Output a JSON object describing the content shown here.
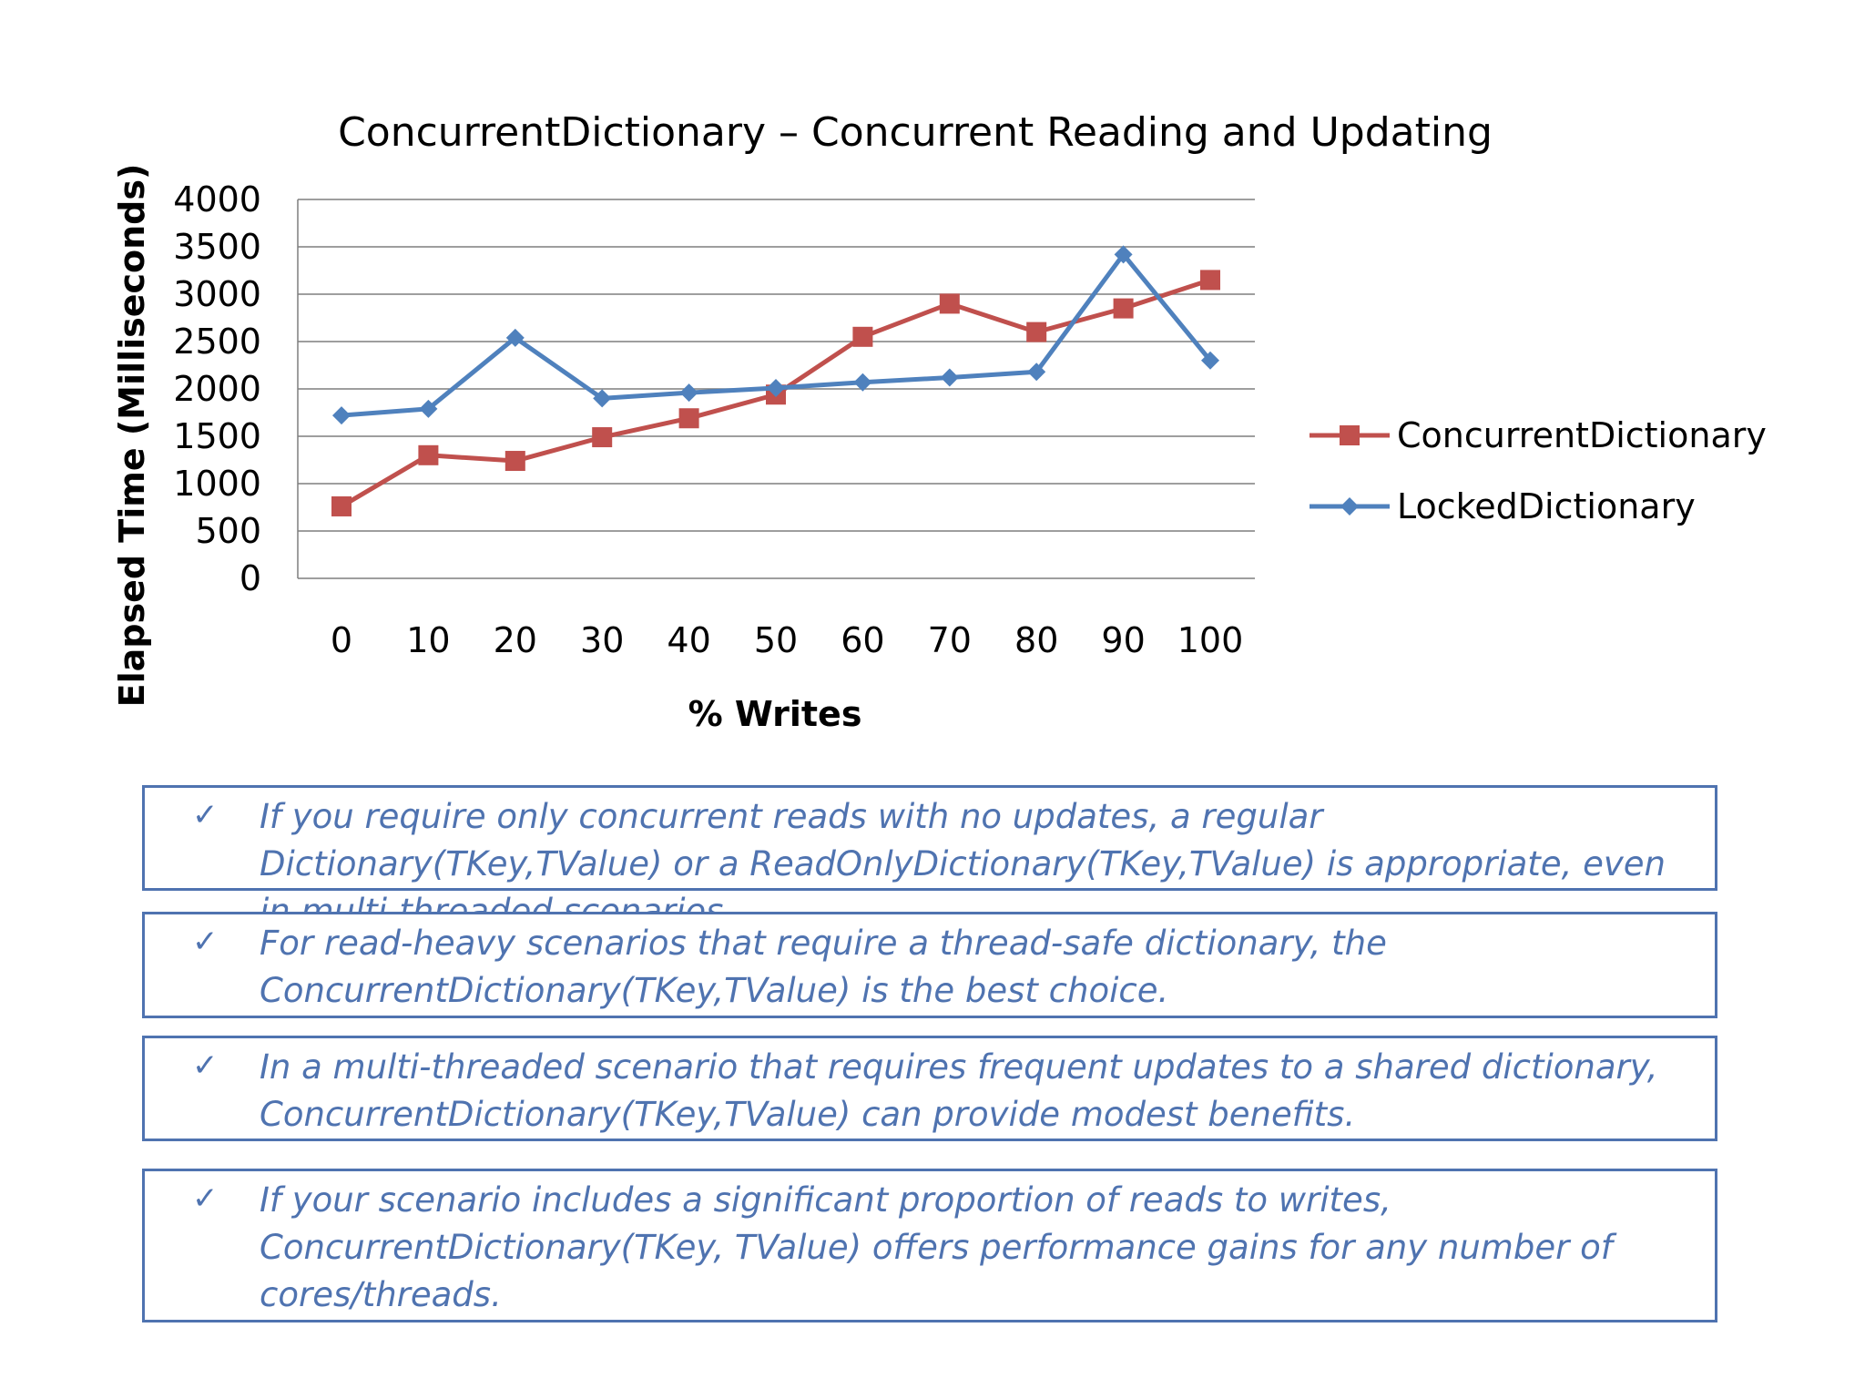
{
  "chart_data": {
    "type": "line",
    "title": "ConcurrentDictionary – Concurrent Reading and Updating",
    "xlabel": "% Writes",
    "ylabel": "Elapsed Time (Milliseconds)",
    "categories": [
      "0",
      "10",
      "20",
      "30",
      "40",
      "50",
      "60",
      "70",
      "80",
      "90",
      "100"
    ],
    "ylim": [
      0,
      4000
    ],
    "yticks": [
      "0",
      "500",
      "1000",
      "1500",
      "2000",
      "2500",
      "3000",
      "3500",
      "4000"
    ],
    "grid": true,
    "legend_position": "right",
    "series": [
      {
        "name": "ConcurrentDictionary",
        "color": "#c0504d",
        "marker": "square",
        "values": [
          760,
          1300,
          1240,
          1490,
          1690,
          1940,
          2550,
          2900,
          2600,
          2850,
          3150
        ]
      },
      {
        "name": "LockedDictionary",
        "color": "#4f81bd",
        "marker": "diamond",
        "values": [
          1720,
          1790,
          2540,
          1900,
          1960,
          2010,
          2070,
          2120,
          2180,
          3420,
          2300
        ]
      }
    ]
  },
  "notes": [
    {
      "check": "✓",
      "text": "If you require only concurrent reads with no updates, a regular Dictionary(TKey,TValue) or a ReadOnlyDictionary(TKey,TValue) is appropriate, even in multi-threaded scenarios."
    },
    {
      "check": "✓",
      "text": "For read-heavy scenarios that require a thread-safe dictionary, the ConcurrentDictionary(TKey,TValue) is the best choice."
    },
    {
      "check": "✓",
      "text": "In a multi-threaded scenario that requires frequent updates to a shared dictionary, ConcurrentDictionary(TKey,TValue) can provide modest benefits."
    },
    {
      "check": "✓",
      "text": "If your scenario includes a significant proportion of reads to writes, ConcurrentDictionary(TKey, TValue) offers performance gains for any number of cores/threads."
    }
  ]
}
